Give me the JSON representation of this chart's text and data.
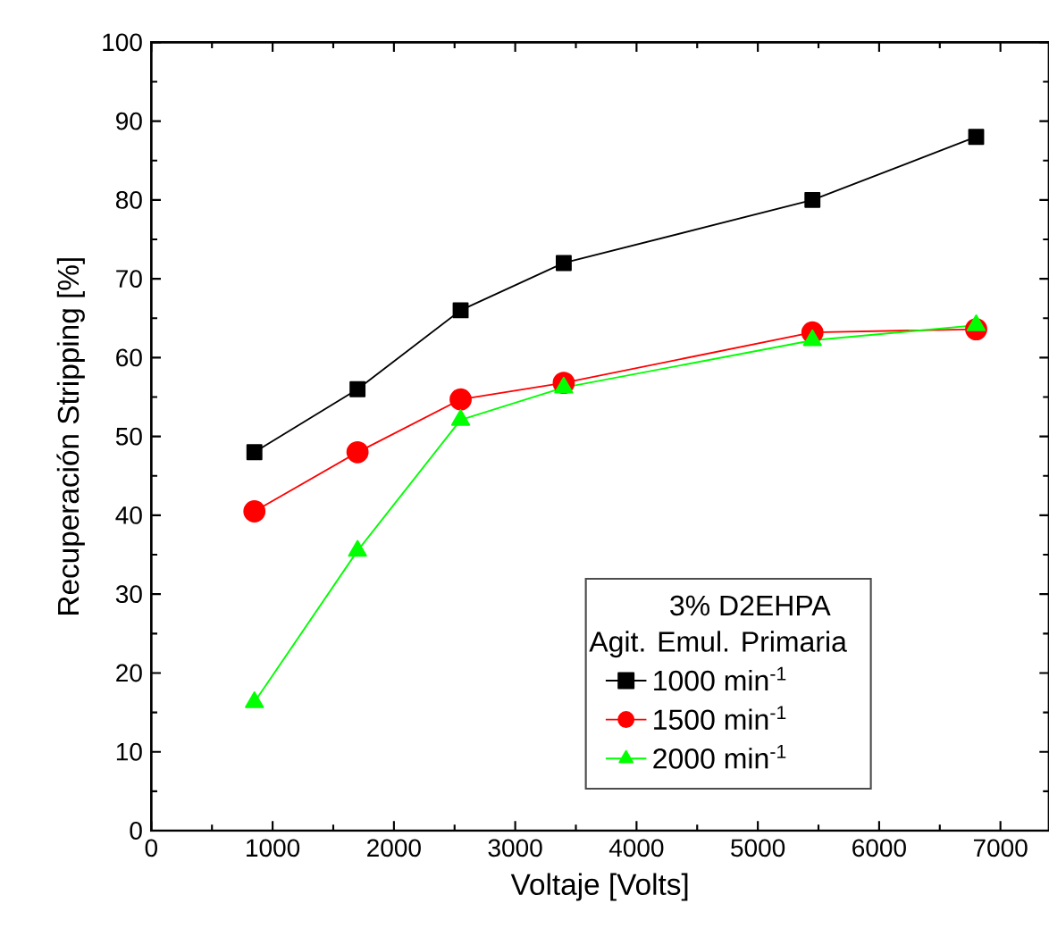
{
  "chart_data": {
    "type": "line",
    "xlabel": "Voltaje [Volts]",
    "ylabel": "Recuperación Stripping [%]",
    "legend_title": "3% D2EHPA",
    "annotations": [
      "Agit. Emul. Primaria"
    ],
    "x": [
      850,
      1700,
      2550,
      3400,
      5450,
      6800
    ],
    "series": [
      {
        "name": "1000 min$^{-1}$",
        "color": "#000000",
        "marker": "square",
        "values": [
          48,
          56,
          66,
          72,
          80,
          88
        ]
      },
      {
        "name": "1500 min$^{-1}$",
        "color": "#ff0000",
        "marker": "circle",
        "values": [
          40.5,
          48,
          54.7,
          56.8,
          63.2,
          63.6
        ]
      },
      {
        "name": "2000 min$^{-1}$",
        "color": "#00ff00",
        "marker": "triangle",
        "values": [
          16.3,
          35.5,
          52.1,
          56.2,
          62.2,
          64.1
        ]
      }
    ],
    "xlim": [
      0,
      7400
    ],
    "xticks": [
      0,
      1000,
      2000,
      3000,
      4000,
      5000,
      6000,
      7000
    ],
    "ylim": [
      0,
      100
    ],
    "yticks": [
      0,
      10,
      20,
      30,
      40,
      50,
      60,
      70,
      80,
      90,
      100
    ],
    "legend": "bottom right",
    "line_style": "solid"
  }
}
